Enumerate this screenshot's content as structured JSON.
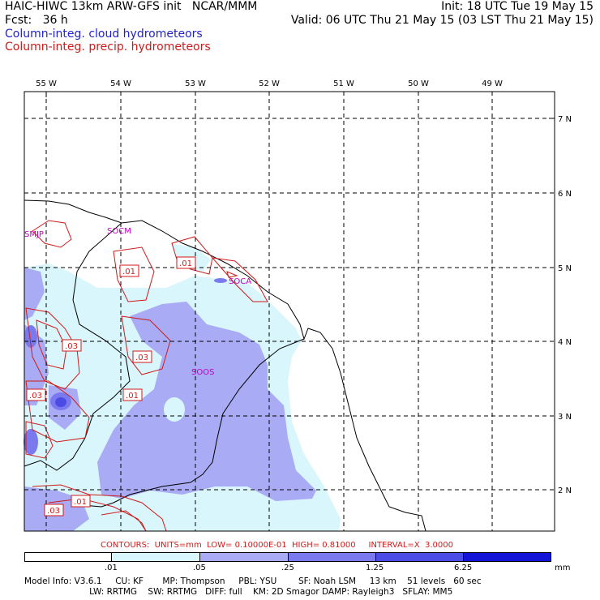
{
  "header": {
    "left_line1": "HAIC-HIWC 13km ARW-GFS init   NCAR/MMM",
    "left_line2": "Fcst:   36 h",
    "right_line1": "Init: 18 UTC Tue 19 May 15",
    "right_line2": "Valid: 06 UTC Thu 21 May 15 (03 LST Thu 21 May 15)"
  },
  "legend": {
    "cloud": "Column-integ. cloud hydrometeors",
    "precip": "Column-integ. precip. hydrometeors",
    "cloud_color": "#1f1fd0",
    "precip_color": "#d01a1a"
  },
  "map": {
    "lon_labels": [
      "55 W",
      "54 W",
      "53 W",
      "52 W",
      "51 W",
      "50 W",
      "49 W"
    ],
    "lat_labels": [
      "7 N",
      "6 N",
      "5 N",
      "4 N",
      "3 N",
      "2 N"
    ],
    "stations": [
      "SMJP",
      "SOCM",
      "SOCA",
      "SOOS"
    ],
    "contour_labels": [
      ".01",
      ".01",
      ".03",
      ".03",
      ".01",
      ".03",
      ".01",
      ".03"
    ],
    "fill_colors": [
      "#ffffff",
      "#d8f6fb",
      "#a9abf4",
      "#7a7aee",
      "#4b4be6",
      "#1414d8"
    ]
  },
  "contours_info": {
    "text": "CONTOURS:  UNITS=mm  LOW= 0.10000E-01  HIGH= 0.81000     INTERVAL=X  3.0000"
  },
  "colorbar": {
    "ticks": [
      ".01",
      ".05",
      ".25",
      "1.25",
      "6.25"
    ],
    "unit": "mm",
    "colors": [
      "#ffffff",
      "#d8f6fb",
      "#a9abf4",
      "#7a7aee",
      "#4b4be6",
      "#1414d8"
    ]
  },
  "model_info": {
    "line1": "Model Info: V3.6.1     CU: KF       MP: Thompson     PBL: YSU        SF: Noah LSM     13 km    51 levels   60 sec",
    "line2": "                        LW: RRTMG    SW: RRTMG   DIFF: full    KM: 2D Smagor DAMP: Rayleigh3   SFLAY: MM5"
  }
}
